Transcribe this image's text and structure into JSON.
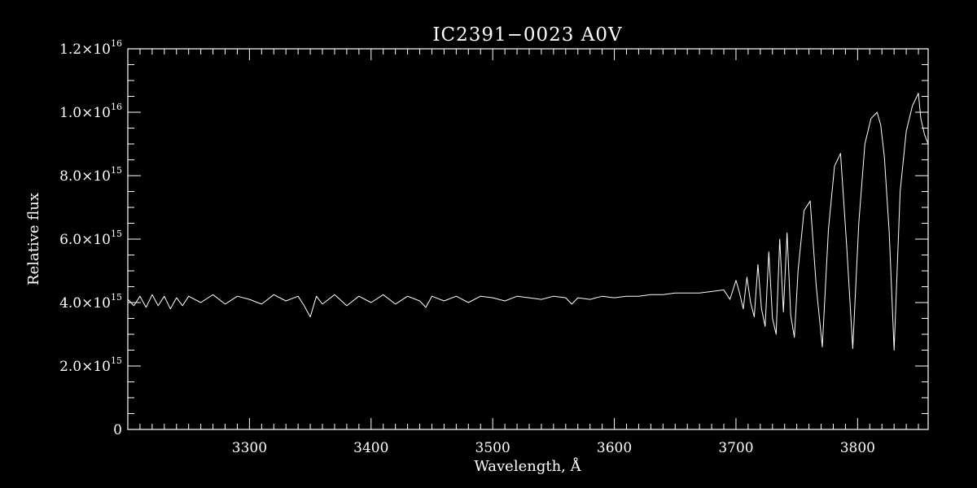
{
  "chart_data": {
    "type": "line",
    "title": "IC2391−0023  A0V",
    "xlabel": "Wavelength, Å",
    "ylabel": "Relative flux",
    "xlim": [
      3200,
      3858
    ],
    "ylim": [
      0,
      1.2e+16
    ],
    "grid": false,
    "x_ticks": [
      {
        "value": 3300,
        "label": "3300"
      },
      {
        "value": 3400,
        "label": "3400"
      },
      {
        "value": 3500,
        "label": "3500"
      },
      {
        "value": 3600,
        "label": "3600"
      },
      {
        "value": 3700,
        "label": "3700"
      },
      {
        "value": 3800,
        "label": "3800"
      }
    ],
    "y_ticks": [
      {
        "value": 0,
        "mantissa": "0",
        "exponent": ""
      },
      {
        "value": 2000000000000000.0,
        "mantissa": "2.0×10",
        "exponent": "15"
      },
      {
        "value": 4000000000000000.0,
        "mantissa": "4.0×10",
        "exponent": "15"
      },
      {
        "value": 6000000000000000.0,
        "mantissa": "6.0×10",
        "exponent": "15"
      },
      {
        "value": 8000000000000000.0,
        "mantissa": "8.0×10",
        "exponent": "15"
      },
      {
        "value": 1e+16,
        "mantissa": "1.0×10",
        "exponent": "16"
      },
      {
        "value": 1.2e+16,
        "mantissa": "1.2×10",
        "exponent": "16"
      }
    ],
    "series": [
      {
        "color": "#ffffff",
        "x": [
          3200,
          3205,
          3210,
          3215,
          3220,
          3225,
          3230,
          3235,
          3240,
          3245,
          3250,
          3260,
          3270,
          3280,
          3290,
          3300,
          3310,
          3320,
          3330,
          3340,
          3345,
          3350,
          3355,
          3360,
          3370,
          3380,
          3390,
          3400,
          3410,
          3420,
          3430,
          3440,
          3445,
          3450,
          3460,
          3470,
          3480,
          3490,
          3500,
          3510,
          3520,
          3530,
          3540,
          3550,
          3560,
          3565,
          3570,
          3580,
          3590,
          3600,
          3610,
          3620,
          3630,
          3640,
          3650,
          3660,
          3670,
          3680,
          3690,
          3695,
          3700,
          3703,
          3706,
          3709,
          3712,
          3715,
          3718,
          3721,
          3724,
          3727,
          3730,
          3733,
          3736,
          3739,
          3742,
          3745,
          3748,
          3751,
          3756,
          3761,
          3766,
          3771,
          3776,
          3781,
          3786,
          3791,
          3796,
          3801,
          3806,
          3811,
          3816,
          3819,
          3822,
          3826,
          3830,
          3835,
          3840,
          3845,
          3850,
          3852,
          3855,
          3858
        ],
        "y": [
          4100000000000000.0,
          3900000000000000.0,
          4200000000000000.0,
          3850000000000000.0,
          4250000000000000.0,
          3900000000000000.0,
          4200000000000000.0,
          3800000000000000.0,
          4150000000000000.0,
          3900000000000000.0,
          4200000000000000.0,
          4000000000000000.0,
          4250000000000000.0,
          3950000000000000.0,
          4200000000000000.0,
          4100000000000000.0,
          3950000000000000.0,
          4250000000000000.0,
          4050000000000000.0,
          4200000000000000.0,
          3900000000000000.0,
          3550000000000000.0,
          4200000000000000.0,
          3950000000000000.0,
          4250000000000000.0,
          3900000000000000.0,
          4200000000000000.0,
          4000000000000000.0,
          4250000000000000.0,
          3950000000000000.0,
          4200000000000000.0,
          4050000000000000.0,
          3850000000000000.0,
          4200000000000000.0,
          4050000000000000.0,
          4200000000000000.0,
          4000000000000000.0,
          4200000000000000.0,
          4150000000000000.0,
          4050000000000000.0,
          4200000000000000.0,
          4150000000000000.0,
          4100000000000000.0,
          4200000000000000.0,
          4150000000000000.0,
          3950000000000000.0,
          4150000000000000.0,
          4100000000000000.0,
          4200000000000000.0,
          4150000000000000.0,
          4200000000000000.0,
          4200000000000000.0,
          4250000000000000.0,
          4250000000000000.0,
          4300000000000000.0,
          4300000000000000.0,
          4300000000000000.0,
          4350000000000000.0,
          4400000000000000.0,
          4100000000000000.0,
          4700000000000000.0,
          4300000000000000.0,
          3800000000000000.0,
          4800000000000000.0,
          4000000000000000.0,
          3550000000000000.0,
          5200000000000000.0,
          3800000000000000.0,
          3250000000000000.0,
          5600000000000000.0,
          3500000000000000.0,
          3000000000000000.0,
          6000000000000000.0,
          3700000000000000.0,
          6200000000000000.0,
          3600000000000000.0,
          2900000000000000.0,
          5000000000000000.0,
          6900000000000000.0,
          7200000000000000.0,
          4500000000000000.0,
          2600000000000000.0,
          6300000000000000.0,
          8300000000000000.0,
          8700000000000000.0,
          5800000000000000.0,
          2550000000000000.0,
          6500000000000000.0,
          9000000000000000.0,
          9800000000000000.0,
          1e+16,
          9600000000000000.0,
          8600000000000000.0,
          6200000000000000.0,
          2500000000000000.0,
          7500000000000000.0,
          9400000000000000.0,
          1.02e+16,
          1.06e+16,
          9800000000000000.0,
          9300000000000000.0,
          9000000000000000.0
        ]
      }
    ]
  }
}
